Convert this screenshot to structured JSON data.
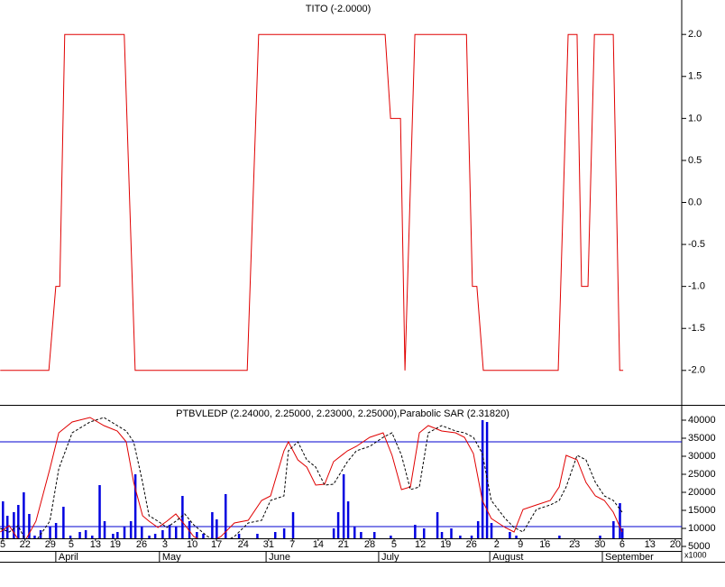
{
  "chart_data": [
    {
      "type": "line",
      "title": "TITO (-2.0000)",
      "color": "#e00000",
      "xlim": [
        -0.55,
        136.9
      ],
      "ylim": [
        -2.41,
        2.41
      ],
      "yticks": [
        {
          "value": 2,
          "label": "2.0"
        },
        {
          "value": 1.5,
          "label": "1.5"
        },
        {
          "value": 1,
          "label": "1.0"
        },
        {
          "value": 0.5,
          "label": "0.5"
        },
        {
          "value": 0,
          "label": "0.0"
        },
        {
          "value": -0.5,
          "label": "-0.5"
        },
        {
          "value": -1,
          "label": "-1.0"
        },
        {
          "value": -1.5,
          "label": "-1.5"
        },
        {
          "value": -2,
          "label": "-2.0"
        }
      ],
      "x": [
        -0.5,
        9.3,
        10.7,
        11.5,
        12.5,
        24.5,
        26.7,
        49.3,
        51.6,
        77.1,
        78.2,
        80.2,
        81.1,
        83.1,
        93.5,
        94.7,
        95.6,
        96.9,
        112,
        114,
        115.8,
        116.7,
        118,
        119.3,
        123.1,
        124.4,
        125.1
      ],
      "values": [
        -2,
        -2,
        -1,
        -1,
        2,
        2,
        -2,
        -2,
        2,
        2,
        1,
        1,
        -2,
        2,
        2,
        -1,
        -1,
        -2,
        -2,
        2,
        2,
        -1,
        -1,
        2,
        2,
        -2,
        -2
      ]
    },
    {
      "type": "combo",
      "title": "PTBVLEDP (2.24000, 2.25000, 2.23000, 2.25000),Parabolic SAR (2.31820)",
      "xlim": [
        -0.55,
        136.9
      ],
      "ylim": [
        7250,
        44000
      ],
      "yticks": [
        40000,
        35000,
        30000,
        25000,
        20000,
        15000,
        10000,
        5000
      ],
      "y_unit_label": "x1000",
      "h_lines": [
        34000,
        10500
      ],
      "h_line_color": "#0000d0",
      "xticks": [
        {
          "value": 0,
          "label": "5"
        },
        {
          "value": 4.5,
          "label": "22"
        },
        {
          "value": 9.6,
          "label": "29"
        },
        {
          "value": 13.8,
          "label": "5"
        },
        {
          "value": 18.7,
          "label": "13"
        },
        {
          "value": 22.7,
          "label": "19"
        },
        {
          "value": 28,
          "label": "26"
        },
        {
          "value": 32.7,
          "label": "3"
        },
        {
          "value": 38.2,
          "label": "10"
        },
        {
          "value": 43.1,
          "label": "17"
        },
        {
          "value": 48.5,
          "label": "24"
        },
        {
          "value": 53.6,
          "label": "31"
        },
        {
          "value": 58.4,
          "label": "7"
        },
        {
          "value": 63.6,
          "label": "14"
        },
        {
          "value": 68.7,
          "label": "21"
        },
        {
          "value": 74,
          "label": "28"
        },
        {
          "value": 78.9,
          "label": "5"
        },
        {
          "value": 84.2,
          "label": "12"
        },
        {
          "value": 89.3,
          "label": "19"
        },
        {
          "value": 94.5,
          "label": "26"
        },
        {
          "value": 99.6,
          "label": "2"
        },
        {
          "value": 104.4,
          "label": "9"
        },
        {
          "value": 109.3,
          "label": "16"
        },
        {
          "value": 115.3,
          "label": "23"
        },
        {
          "value": 120.4,
          "label": "30"
        },
        {
          "value": 124.9,
          "label": "6"
        },
        {
          "value": 130.5,
          "label": "13"
        },
        {
          "value": 135.6,
          "label": "20"
        }
      ],
      "month_ticks": [
        {
          "value": 10.7,
          "label": "April"
        },
        {
          "value": 31.6,
          "label": "May"
        },
        {
          "value": 53.1,
          "label": "June"
        },
        {
          "value": 75.8,
          "label": "July"
        },
        {
          "value": 98.2,
          "label": "August"
        },
        {
          "value": 120.9,
          "label": "September"
        }
      ],
      "series": [
        {
          "type": "bar",
          "color": "#0000e0",
          "x": [
            0,
            0.9,
            2.2,
            3.1,
            4.2,
            5.3,
            6.4,
            7.6,
            9.5,
            10.7,
            12.2,
            13.6,
            15.5,
            16.7,
            18,
            19.5,
            20.5,
            22.2,
            23.1,
            24.5,
            25.8,
            26.7,
            28,
            29.5,
            30.7,
            32.2,
            33.6,
            34.9,
            36.2,
            37.6,
            39.1,
            40.4,
            42.2,
            43.1,
            44.9,
            47.6,
            51.3,
            54.9,
            56.7,
            58.5,
            66.7,
            67.6,
            68.7,
            69.6,
            70.9,
            72.2,
            74.9,
            78.2,
            83.1,
            84.9,
            87.6,
            88.5,
            90.4,
            92.2,
            94.5,
            95.8,
            96.7,
            97.6,
            98.5,
            102.2,
            103.5,
            112.2,
            120.4,
            123.1,
            124.4,
            124.9
          ],
          "values": [
            17500,
            13500,
            14500,
            16500,
            20000,
            14000,
            8000,
            9500,
            10500,
            11500,
            16000,
            8000,
            9000,
            9500,
            8000,
            22000,
            12000,
            8500,
            9000,
            10500,
            12000,
            25000,
            10500,
            8000,
            8500,
            9500,
            11000,
            10500,
            19000,
            12000,
            9000,
            8500,
            14500,
            12500,
            19500,
            8500,
            8500,
            9000,
            10000,
            14500,
            10000,
            14500,
            25000,
            17500,
            10500,
            9000,
            9000,
            8000,
            11000,
            10000,
            14500,
            9000,
            10000,
            8000,
            8000,
            12000,
            40000,
            39500,
            11500,
            9000,
            8000,
            8000,
            8000,
            12000,
            17000,
            10000
          ]
        },
        {
          "type": "line",
          "color": "#e00000",
          "x": [
            -0.5,
            1.3,
            3.1,
            4.5,
            6.7,
            9.5,
            11.3,
            14,
            17.6,
            20.4,
            23.1,
            24.9,
            26.4,
            28.2,
            29.5,
            31.3,
            33.1,
            34.9,
            36.7,
            38.5,
            41.3,
            44,
            46.7,
            49.5,
            52.2,
            54,
            56.7,
            57.6,
            59.5,
            61.3,
            63.1,
            64.9,
            66.7,
            69.5,
            71.3,
            74,
            76.7,
            78.5,
            80.4,
            82.2,
            84,
            85.8,
            88.5,
            91.3,
            93.1,
            94.9,
            96.7,
            98.5,
            101.3,
            103.1,
            104.9,
            107.6,
            110.4,
            112.2,
            113.6,
            115.8,
            117.6,
            119.5,
            121.3,
            123.1,
            124.9
          ],
          "values": [
            9000,
            10750,
            7000,
            6500,
            12000,
            26500,
            36500,
            39500,
            40750,
            38500,
            37000,
            34000,
            22750,
            13500,
            12000,
            10250,
            12000,
            14000,
            11000,
            7750,
            5750,
            7750,
            11500,
            12250,
            17750,
            19000,
            31500,
            34000,
            29000,
            27000,
            22000,
            22250,
            28500,
            31500,
            32750,
            35250,
            36500,
            30250,
            20750,
            21500,
            36500,
            38500,
            37000,
            36500,
            35250,
            30750,
            17750,
            12750,
            10250,
            9000,
            15250,
            16500,
            17750,
            21500,
            30250,
            29000,
            22750,
            19000,
            17750,
            14500,
            9000
          ]
        },
        {
          "type": "line",
          "color": "#000000",
          "dashed": true,
          "x": [
            -0.5,
            1.3,
            3.1,
            4.5,
            6.7,
            9.5,
            11.3,
            14,
            17.6,
            20.4,
            23.1,
            24.9,
            26.4,
            28.2,
            29.5,
            31.3,
            33.1,
            34.9,
            36.7,
            38.5,
            41.3,
            44,
            46.7,
            49.5,
            52.2,
            54,
            56.7,
            57.6,
            59.5,
            61.3,
            63.1,
            64.9,
            66.7,
            69.5,
            71.3,
            74,
            76.7,
            78.5,
            80.4,
            82.2,
            84,
            85.8,
            88.5,
            91.3,
            93.1,
            94.9,
            96.7,
            98.5,
            101.3,
            103.1,
            104.9,
            107.6,
            110.4,
            112.2,
            113.6,
            115.8,
            117.6,
            119.5,
            121.3,
            123.1,
            124.9
          ],
          "values": [
            10000,
            9000,
            10750,
            7000,
            6500,
            12000,
            26500,
            36500,
            39500,
            40750,
            38500,
            37000,
            34000,
            22750,
            13500,
            12000,
            10250,
            12000,
            14000,
            11000,
            7750,
            5750,
            7750,
            11500,
            12250,
            17750,
            19000,
            31500,
            34000,
            29000,
            27000,
            22000,
            22250,
            28500,
            31500,
            32750,
            35250,
            36500,
            30250,
            20750,
            21500,
            36500,
            38500,
            37000,
            36500,
            35250,
            30750,
            17750,
            12750,
            10250,
            9000,
            15250,
            16500,
            17750,
            21500,
            30250,
            29000,
            22750,
            19000,
            17750,
            14500
          ]
        }
      ]
    }
  ]
}
